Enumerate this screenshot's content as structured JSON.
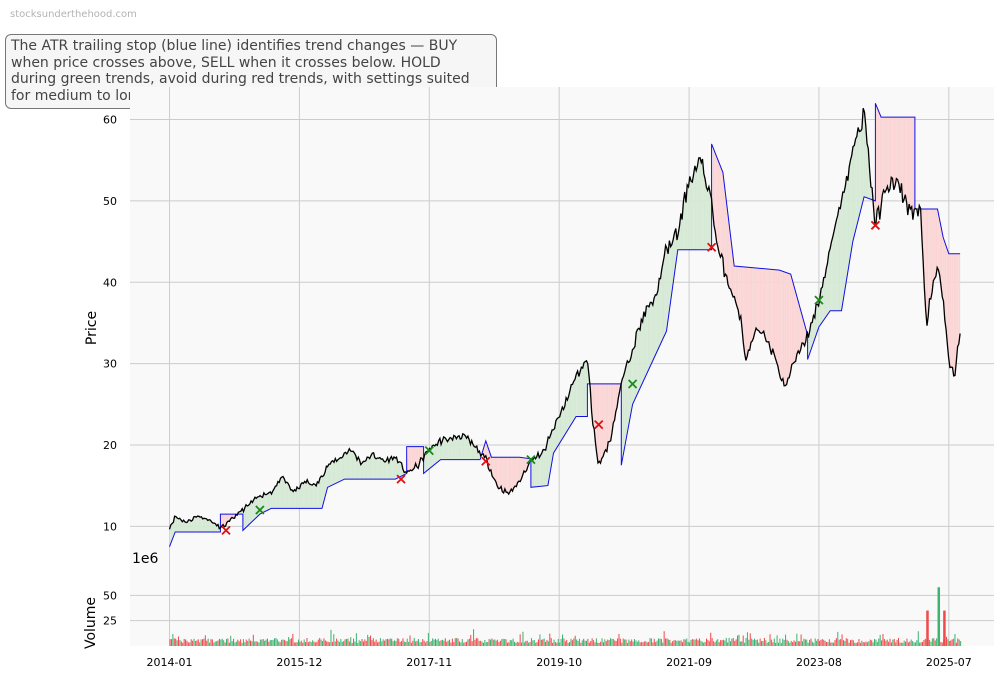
{
  "watermark": "stocksunderthehood.com",
  "annotation": "The ATR trailing stop (blue line) identifies trend changes — BUY when price crosses above, SELL when it crosses below. HOLD during green trends, avoid during red trends, with settings suited for medium to long-term investors.",
  "chart_data": {
    "type": "line",
    "price_panel": {
      "ylabel": "Price",
      "ylim": [
        5,
        64
      ],
      "yticks": [
        10,
        20,
        30,
        40,
        50,
        60
      ],
      "grid": true
    },
    "volume_panel": {
      "ylabel": "Volume",
      "yexponent_label": "1e6",
      "ylim": [
        0,
        78
      ],
      "yticks": [
        25,
        50
      ],
      "tick_labels": [
        "25",
        "50"
      ],
      "up_color": "#3cb371",
      "down_color": "#f04a4a",
      "notable_spikes": [
        {
          "x": "2025-03",
          "value": 35,
          "direction": "down"
        },
        {
          "x": "2025-05",
          "value": 58,
          "direction": "up"
        },
        {
          "x": "2025-06",
          "value": 35,
          "direction": "down"
        }
      ]
    },
    "x_ticks": [
      "2014-01",
      "2015-12",
      "2017-11",
      "2019-10",
      "2021-09",
      "2023-08",
      "2025-07"
    ],
    "xlim": [
      "2013-06",
      "2026-03"
    ],
    "colors": {
      "price": "#000000",
      "stop": "#1010e0",
      "up_fill": "#d5e9d5",
      "down_fill": "#fbd5d5",
      "buy": "#1a8a1a",
      "sell": "#e01010"
    },
    "series": [
      {
        "key": "price",
        "points": [
          [
            "2014-01",
            9.8
          ],
          [
            "2014-02",
            11.2
          ],
          [
            "2014-04",
            10.5
          ],
          [
            "2014-06",
            11.3
          ],
          [
            "2014-08",
            10.8
          ],
          [
            "2014-10",
            9.8
          ],
          [
            "2014-11",
            10.2
          ],
          [
            "2015-01",
            11.5
          ],
          [
            "2015-03",
            12.6
          ],
          [
            "2015-05",
            13.8
          ],
          [
            "2015-07",
            14.2
          ],
          [
            "2015-09",
            16.0
          ],
          [
            "2015-11",
            14.2
          ],
          [
            "2016-01",
            15.5
          ],
          [
            "2016-03",
            15.0
          ],
          [
            "2016-05",
            17.5
          ],
          [
            "2016-07",
            18.3
          ],
          [
            "2016-09",
            19.5
          ],
          [
            "2016-11",
            17.8
          ],
          [
            "2017-01",
            18.8
          ],
          [
            "2017-03",
            18.0
          ],
          [
            "2017-05",
            18.5
          ],
          [
            "2017-07",
            16.5
          ],
          [
            "2017-09",
            17.5
          ],
          [
            "2017-11",
            19.5
          ],
          [
            "2018-01",
            20.5
          ],
          [
            "2018-03",
            20.8
          ],
          [
            "2018-05",
            21.2
          ],
          [
            "2018-07",
            19.8
          ],
          [
            "2018-09",
            18.3
          ],
          [
            "2018-11",
            15.0
          ],
          [
            "2019-01",
            14.0
          ],
          [
            "2019-03",
            15.5
          ],
          [
            "2019-05",
            18.3
          ],
          [
            "2019-07",
            18.8
          ],
          [
            "2019-09",
            22.0
          ],
          [
            "2019-11",
            25.0
          ],
          [
            "2020-01",
            28.5
          ],
          [
            "2020-03",
            30.5
          ],
          [
            "2020-04",
            22.5
          ],
          [
            "2020-05",
            17.5
          ],
          [
            "2020-07",
            20.5
          ],
          [
            "2020-09",
            27.5
          ],
          [
            "2020-11",
            32.0
          ],
          [
            "2021-01",
            36.0
          ],
          [
            "2021-03",
            38.0
          ],
          [
            "2021-05",
            44.0
          ],
          [
            "2021-07",
            46.0
          ],
          [
            "2021-09",
            52.5
          ],
          [
            "2021-11",
            55.0
          ],
          [
            "2022-01",
            50.0
          ],
          [
            "2022-02",
            44.3
          ],
          [
            "2022-04",
            40.0
          ],
          [
            "2022-06",
            36.0
          ],
          [
            "2022-07",
            30.5
          ],
          [
            "2022-09",
            34.0
          ],
          [
            "2022-11",
            33.0
          ],
          [
            "2023-01",
            29.0
          ],
          [
            "2023-02",
            27.0
          ],
          [
            "2023-04",
            31.0
          ],
          [
            "2023-06",
            33.5
          ],
          [
            "2023-08",
            37.8
          ],
          [
            "2023-10",
            44.0
          ],
          [
            "2023-12",
            50.0
          ],
          [
            "2024-02",
            56.0
          ],
          [
            "2024-04",
            61.0
          ],
          [
            "2024-06",
            47.0
          ],
          [
            "2024-08",
            52.0
          ],
          [
            "2024-10",
            52.0
          ],
          [
            "2024-12",
            49.0
          ],
          [
            "2025-02",
            48.5
          ],
          [
            "2025-03",
            35.0
          ],
          [
            "2025-05",
            42.0
          ],
          [
            "2025-06",
            38.0
          ],
          [
            "2025-07",
            30.0
          ],
          [
            "2025-08",
            28.5
          ],
          [
            "2025-09",
            34.0
          ]
        ]
      },
      {
        "key": "stop",
        "points": [
          [
            "2014-01",
            7.5
          ],
          [
            "2014-02",
            9.3
          ],
          [
            "2014-10",
            9.3
          ],
          [
            "2014-10",
            11.5
          ],
          [
            "2015-02",
            11.5
          ],
          [
            "2015-02",
            9.5
          ],
          [
            "2015-05",
            11.5
          ],
          [
            "2015-07",
            12.2
          ],
          [
            "2016-04",
            12.2
          ],
          [
            "2016-05",
            14.8
          ],
          [
            "2016-08",
            15.8
          ],
          [
            "2017-05",
            15.8
          ],
          [
            "2017-07",
            16.5
          ],
          [
            "2017-07",
            19.8
          ],
          [
            "2017-10",
            19.8
          ],
          [
            "2017-10",
            16.5
          ],
          [
            "2018-01",
            18.2
          ],
          [
            "2018-08",
            18.2
          ],
          [
            "2018-09",
            20.5
          ],
          [
            "2018-10",
            18.5
          ],
          [
            "2019-03",
            18.5
          ],
          [
            "2019-05",
            18.3
          ],
          [
            "2019-05",
            14.8
          ],
          [
            "2019-08",
            15.0
          ],
          [
            "2019-09",
            19.0
          ],
          [
            "2020-01",
            23.5
          ],
          [
            "2020-03",
            23.5
          ],
          [
            "2020-03",
            27.5
          ],
          [
            "2020-09",
            27.5
          ],
          [
            "2020-09",
            17.5
          ],
          [
            "2020-11",
            25.0
          ],
          [
            "2021-03",
            31.0
          ],
          [
            "2021-05",
            34.0
          ],
          [
            "2021-07",
            44.0
          ],
          [
            "2022-01",
            44.0
          ],
          [
            "2022-01",
            57.0
          ],
          [
            "2022-03",
            53.5
          ],
          [
            "2022-05",
            42.0
          ],
          [
            "2023-01",
            41.5
          ],
          [
            "2023-03",
            41.0
          ],
          [
            "2023-06",
            33.5
          ],
          [
            "2023-06",
            30.5
          ],
          [
            "2023-08",
            34.5
          ],
          [
            "2023-10",
            36.5
          ],
          [
            "2023-12",
            36.5
          ],
          [
            "2024-02",
            45.0
          ],
          [
            "2024-04",
            50.5
          ],
          [
            "2024-06",
            50.0
          ],
          [
            "2024-06",
            62.0
          ],
          [
            "2024-07",
            60.3
          ],
          [
            "2025-01",
            60.3
          ],
          [
            "2025-01",
            49.0
          ],
          [
            "2025-05",
            49.0
          ],
          [
            "2025-06",
            45.5
          ],
          [
            "2025-07",
            43.5
          ],
          [
            "2025-09",
            43.5
          ]
        ]
      }
    ],
    "signals": [
      {
        "x": "2014-11",
        "y": 9.5,
        "type": "sell"
      },
      {
        "x": "2015-05",
        "y": 12.0,
        "type": "buy"
      },
      {
        "x": "2017-06",
        "y": 15.8,
        "type": "sell"
      },
      {
        "x": "2017-11",
        "y": 19.3,
        "type": "buy"
      },
      {
        "x": "2018-09",
        "y": 18.0,
        "type": "sell"
      },
      {
        "x": "2019-05",
        "y": 18.2,
        "type": "buy"
      },
      {
        "x": "2020-05",
        "y": 22.5,
        "type": "sell"
      },
      {
        "x": "2020-11",
        "y": 27.5,
        "type": "buy"
      },
      {
        "x": "2022-01",
        "y": 44.3,
        "type": "sell"
      },
      {
        "x": "2023-08",
        "y": 37.8,
        "type": "buy"
      },
      {
        "x": "2024-06",
        "y": 47.0,
        "type": "sell"
      }
    ]
  }
}
